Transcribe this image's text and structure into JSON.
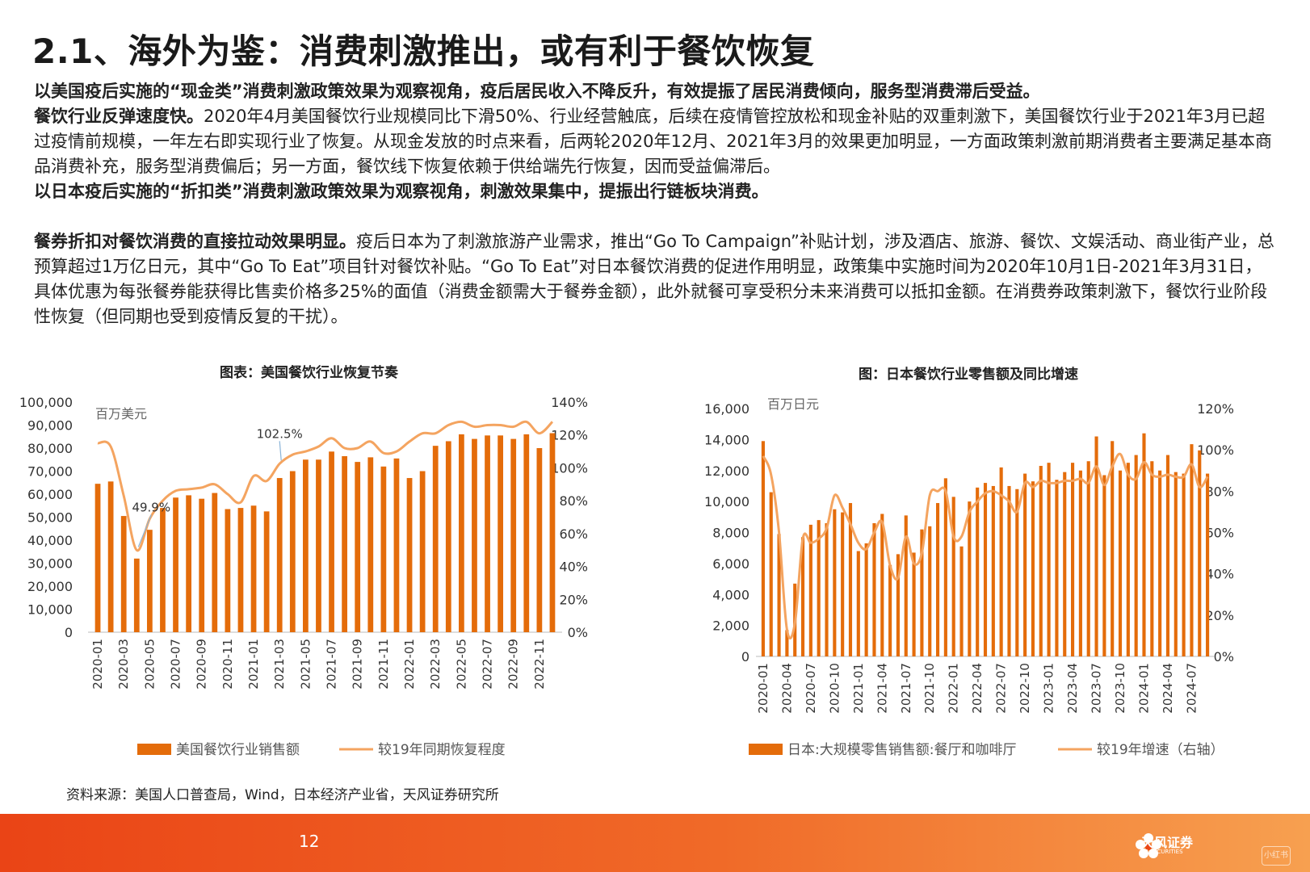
{
  "slide": {
    "title": "2.1、海外为鉴：消费刺激推出，或有利于餐饮恢复",
    "p1": "以美国疫后实施的“现金类”消费刺激政策效果为观察视角，疫后居民收入不降反升，有效提振了居民消费倾向，服务型消费滞后受益。",
    "p2_bold": "餐饮行业反弹速度快。",
    "p2_text": "2020年4月美国餐饮行业规模同比下滑50%、行业经营触底，后续在疫情管控放松和现金补贴的双重刺激下，美国餐饮行业于2021年3月已超过疫情前规模，一年左右即实现行业了恢复。从现金发放的时点来看，后两轮2020年12月、2021年3月的效果更加明显，一方面政策刺激前期消费者主要满足基本商品消费补充，服务型消费偏后；另一方面，餐饮线下恢复依赖于供给端先行恢复，因而受益偏滞后。",
    "p3": "以日本疫后实施的“折扣类”消费刺激政策效果为观察视角，刺激效果集中，提振出行链板块消费。",
    "p4_bold": "餐券折扣对餐饮消费的直接拉动效果明显。",
    "p4_text": "疫后日本为了刺激旅游产业需求，推出“Go To Campaign”补贴计划，涉及酒店、旅游、餐饮、文娱活动、商业街产业，总预算超过1万亿日元，其中“Go To Eat”项目针对餐饮补贴。“Go To Eat”对日本餐饮消费的促进作用明显，政策集中实施时间为2020年10月1日-2021年3月31日，具体优惠为每张餐券能获得比售卖价格多25%的面值（消费金额需大于餐券金额），此外就餐可享受积分未来消费可以抵扣金额。在消费券政策刺激下，餐饮行业阶段性恢复（但同期也受到疫情反复的干扰）。",
    "source": "资料来源：美国人口普查局，Wind，日本经济产业省，天风证券研究所",
    "page_number": "12",
    "logo_text": "天风证券",
    "logo_sub": "TF SECURITIES",
    "watermark": "小红书"
  },
  "colors": {
    "bar": "#e46c0a",
    "line": "#f4a460",
    "footer": "#ea4416",
    "annotation": "#8ab4d8"
  },
  "chart_data": [
    {
      "type": "bar+line",
      "title": "图表：美国餐饮行业恢复节奏",
      "unit_label": "百万美元",
      "categories": [
        "2020-01",
        "2020-02",
        "2020-03",
        "2020-04",
        "2020-05",
        "2020-06",
        "2020-07",
        "2020-08",
        "2020-09",
        "2020-10",
        "2020-11",
        "2020-12",
        "2021-01",
        "2021-02",
        "2021-03",
        "2021-04",
        "2021-05",
        "2021-06",
        "2021-07",
        "2021-08",
        "2021-09",
        "2021-10",
        "2021-11",
        "2021-12",
        "2022-01",
        "2022-02",
        "2022-03",
        "2022-04",
        "2022-05",
        "2022-06",
        "2022-07",
        "2022-08",
        "2022-09",
        "2022-10",
        "2022-11",
        "2022-12"
      ],
      "x_tick_labels": [
        "2020-01",
        "2020-03",
        "2020-05",
        "2020-07",
        "2020-09",
        "2020-11",
        "2021-01",
        "2021-03",
        "2021-05",
        "2021-07",
        "2021-09",
        "2021-11",
        "2022-01",
        "2022-03",
        "2022-05",
        "2022-07",
        "2022-09",
        "2022-11"
      ],
      "series": [
        {
          "name": "美国餐饮行业销售额",
          "axis": "left",
          "type": "bar",
          "values": [
            64500,
            65500,
            50500,
            32000,
            44500,
            54000,
            58500,
            59500,
            58000,
            60500,
            53500,
            54000,
            55000,
            52500,
            67000,
            70000,
            75000,
            75000,
            78500,
            76500,
            74000,
            76000,
            72000,
            75500,
            67000,
            70000,
            81000,
            83000,
            86000,
            84000,
            85500,
            85500,
            84000,
            86000,
            80000,
            86500
          ]
        },
        {
          "name": "较19年同期恢复程度",
          "axis": "right",
          "type": "line",
          "values": [
            115,
            113,
            83,
            49.9,
            69,
            80,
            86,
            87,
            88,
            90,
            84,
            79,
            95,
            92,
            102.5,
            108,
            110,
            113,
            118,
            112,
            112,
            116,
            109,
            110,
            116,
            121,
            121,
            126,
            128,
            125,
            126,
            126,
            125,
            128,
            121,
            128
          ]
        }
      ],
      "y_left": {
        "min": 0,
        "max": 100000,
        "ticks": [
          "0",
          "10,000",
          "20,000",
          "30,000",
          "40,000",
          "50,000",
          "60,000",
          "70,000",
          "80,000",
          "90,000",
          "100,000"
        ]
      },
      "y_right": {
        "min": 0,
        "max": 140,
        "ticks": [
          "0%",
          "20%",
          "40%",
          "60%",
          "80%",
          "100%",
          "120%",
          "140%"
        ]
      },
      "annotations": [
        {
          "label": "49.9%",
          "index": 3
        },
        {
          "label": "102.5%",
          "index": 14
        }
      ],
      "legend": [
        "美国餐饮行业销售额",
        "较19年同期恢复程度"
      ]
    },
    {
      "type": "bar+line",
      "title": "图：日本餐饮行业零售额及同比增速",
      "unit_label": "百万日元",
      "categories": [
        "2020-01",
        "2020-02",
        "2020-03",
        "2020-04",
        "2020-05",
        "2020-06",
        "2020-07",
        "2020-08",
        "2020-09",
        "2020-10",
        "2020-11",
        "2020-12",
        "2021-01",
        "2021-02",
        "2021-03",
        "2021-04",
        "2021-05",
        "2021-06",
        "2021-07",
        "2021-08",
        "2021-09",
        "2021-10",
        "2021-11",
        "2021-12",
        "2022-01",
        "2022-02",
        "2022-03",
        "2022-04",
        "2022-05",
        "2022-06",
        "2022-07",
        "2022-08",
        "2022-09",
        "2022-10",
        "2022-11",
        "2022-12",
        "2023-01",
        "2023-02",
        "2023-03",
        "2023-04",
        "2023-05",
        "2023-06",
        "2023-07",
        "2023-08",
        "2023-09",
        "2023-10",
        "2023-11",
        "2023-12",
        "2024-01",
        "2024-02",
        "2024-03",
        "2024-04",
        "2024-05",
        "2024-06",
        "2024-07",
        "2024-08",
        "2024-09"
      ],
      "x_tick_labels": [
        "2020-01",
        "2020-04",
        "2020-07",
        "2020-10",
        "2021-01",
        "2021-04",
        "2021-07",
        "2021-10",
        "2022-01",
        "2022-04",
        "2022-07",
        "2022-10",
        "2023-01",
        "2023-04",
        "2023-07",
        "2023-10",
        "2024-01",
        "2024-04",
        "2024-07"
      ],
      "series": [
        {
          "name": "日本:大规模零售销售额:餐厅和咖啡厅",
          "axis": "left",
          "type": "bar",
          "values": [
            13900,
            10600,
            7900,
            1700,
            4700,
            7700,
            8500,
            8800,
            8600,
            9500,
            9300,
            9900,
            6800,
            7300,
            8600,
            9200,
            5900,
            6600,
            9100,
            6700,
            8200,
            8400,
            9900,
            11500,
            10300,
            7100,
            10000,
            10900,
            11200,
            11000,
            12200,
            11000,
            10800,
            11800,
            11300,
            12300,
            12500,
            11400,
            11900,
            12500,
            12000,
            12600,
            14200,
            11700,
            13900,
            12000,
            12500,
            13000,
            14400,
            12600,
            12000,
            13000,
            11900,
            11800,
            13700,
            13300,
            11800
          ]
        },
        {
          "name": "较19年增速（右轴）",
          "axis": "right",
          "type": "line",
          "values": [
            97,
            88,
            60,
            13,
            16,
            57,
            55,
            57,
            62,
            78,
            72,
            64,
            55,
            52,
            60,
            65,
            44,
            38,
            58,
            45,
            50,
            78,
            80,
            80,
            58,
            58,
            70,
            75,
            79,
            80,
            78,
            75,
            70,
            84,
            82,
            85,
            84,
            84,
            85,
            85,
            86,
            84,
            92,
            83,
            92,
            98,
            88,
            86,
            94,
            88,
            87,
            88,
            87,
            87,
            93,
            82,
            87
          ]
        }
      ],
      "y_left": {
        "min": 0,
        "max": 16000,
        "ticks": [
          "0",
          "2,000",
          "4,000",
          "6,000",
          "8,000",
          "10,000",
          "12,000",
          "14,000",
          "16,000"
        ]
      },
      "y_right": {
        "min": 0,
        "max": 120,
        "ticks": [
          "0%",
          "20%",
          "40%",
          "60%",
          "80%",
          "100%",
          "120%"
        ]
      },
      "legend": [
        "日本:大规模零售销售额:餐厅和咖啡厅",
        "较19年增速（右轴）"
      ]
    }
  ]
}
